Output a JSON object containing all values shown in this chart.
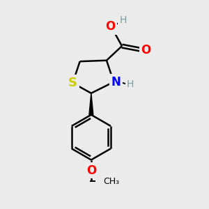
{
  "background_color": "#ebebeb",
  "atom_colors": {
    "C": "#000000",
    "H": "#7a9a9a",
    "N": "#0000ff",
    "O": "#ff0000",
    "S": "#cccc00"
  },
  "bond_color": "#000000",
  "bond_width": 1.8,
  "figsize": [
    3.0,
    3.0
  ],
  "dpi": 100,
  "xlim": [
    0,
    10
  ],
  "ylim": [
    0,
    10
  ]
}
